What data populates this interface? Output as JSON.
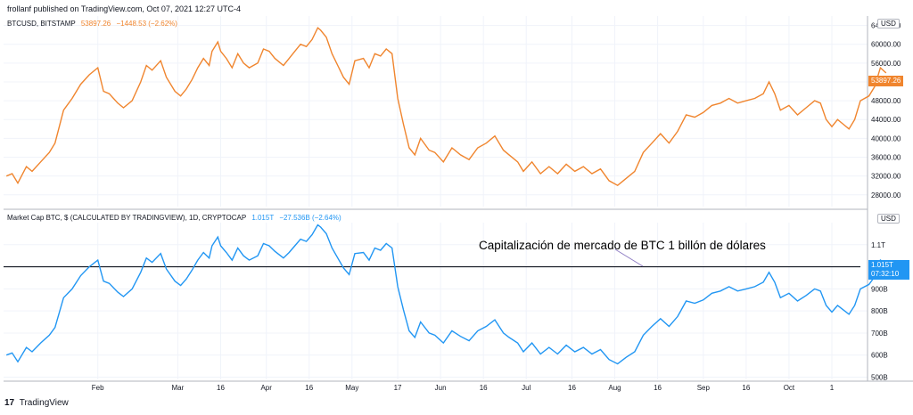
{
  "header": {
    "text": "frollanf published on TradingView.com, Oct 07, 2021 12:27 UTC-4"
  },
  "footer": {
    "logo": "17",
    "brand": "TradingView"
  },
  "colors": {
    "btc": "#f0852e",
    "cap": "#2196f3",
    "grid": "#f0f3fa",
    "axis": "#b2b5be",
    "hline": "#131722"
  },
  "annotation": {
    "text": "Capitalización de mercado de BTC 1 billón de dólares"
  },
  "chart_data": [
    {
      "type": "line",
      "symbol": "BTCUSD, BITSTAMP",
      "last_value": "53897.26",
      "change": "−1448.53 (−2.62%)",
      "unit": "USD",
      "price_label": "53897.26",
      "y_ticks": [
        "64000.00",
        "60000.00",
        "56000.00",
        "52000.00",
        "48000.00",
        "44000.00",
        "40000.00",
        "36000.00",
        "32000.00",
        "28000.00"
      ],
      "y_tick_values": [
        64000,
        60000,
        56000,
        52000,
        48000,
        44000,
        40000,
        36000,
        32000,
        28000
      ],
      "ylim": [
        25500,
        66000
      ],
      "x_ticks": [
        "Feb",
        "Mar",
        "16",
        "Apr",
        "16",
        "May",
        "17",
        "Jun",
        "16",
        "Jul",
        "16",
        "Aug",
        "16",
        "Sep",
        "16",
        "Oct",
        "1"
      ],
      "x_tick_days": [
        33,
        61,
        76,
        92,
        107,
        122,
        138,
        153,
        168,
        183,
        199,
        214,
        229,
        245,
        260,
        275,
        290
      ],
      "series": [
        {
          "values": [
            [
              1,
              32000
            ],
            [
              3,
              32500
            ],
            [
              5,
              30500
            ],
            [
              8,
              34000
            ],
            [
              10,
              33000
            ],
            [
              13,
              35000
            ],
            [
              16,
              37000
            ],
            [
              18,
              39000
            ],
            [
              21,
              46000
            ],
            [
              24,
              48500
            ],
            [
              27,
              51500
            ],
            [
              30,
              53500
            ],
            [
              33,
              55000
            ],
            [
              35,
              50000
            ],
            [
              37,
              49500
            ],
            [
              40,
              47500
            ],
            [
              42,
              46500
            ],
            [
              45,
              48000
            ],
            [
              48,
              52000
            ],
            [
              50,
              55500
            ],
            [
              52,
              54500
            ],
            [
              55,
              56500
            ],
            [
              57,
              53000
            ],
            [
              60,
              50000
            ],
            [
              62,
              49000
            ],
            [
              64,
              50500
            ],
            [
              66,
              52500
            ],
            [
              68,
              55000
            ],
            [
              70,
              57000
            ],
            [
              72,
              55500
            ],
            [
              73,
              58500
            ],
            [
              75,
              60500
            ],
            [
              76,
              58500
            ],
            [
              78,
              57000
            ],
            [
              80,
              55000
            ],
            [
              82,
              58000
            ],
            [
              84,
              56000
            ],
            [
              86,
              55000
            ],
            [
              89,
              56000
            ],
            [
              91,
              59000
            ],
            [
              93,
              58500
            ],
            [
              95,
              57000
            ],
            [
              98,
              55500
            ],
            [
              100,
              57000
            ],
            [
              102,
              58500
            ],
            [
              104,
              60000
            ],
            [
              106,
              59500
            ],
            [
              108,
              61000
            ],
            [
              110,
              63500
            ],
            [
              111,
              63000
            ],
            [
              113,
              61500
            ],
            [
              115,
              58000
            ],
            [
              117,
              55500
            ],
            [
              119,
              53000
            ],
            [
              121,
              51500
            ],
            [
              123,
              56500
            ],
            [
              126,
              57000
            ],
            [
              128,
              55000
            ],
            [
              130,
              58000
            ],
            [
              132,
              57500
            ],
            [
              134,
              59000
            ],
            [
              136,
              58000
            ],
            [
              138,
              48500
            ],
            [
              140,
              43000
            ],
            [
              142,
              38000
            ],
            [
              144,
              36500
            ],
            [
              146,
              40000
            ],
            [
              149,
              37500
            ],
            [
              151,
              37000
            ],
            [
              154,
              35000
            ],
            [
              157,
              38000
            ],
            [
              160,
              36500
            ],
            [
              163,
              35500
            ],
            [
              166,
              38000
            ],
            [
              169,
              39000
            ],
            [
              172,
              40500
            ],
            [
              175,
              37500
            ],
            [
              177,
              36500
            ],
            [
              180,
              35000
            ],
            [
              182,
              33000
            ],
            [
              185,
              35000
            ],
            [
              188,
              32500
            ],
            [
              191,
              34000
            ],
            [
              194,
              32500
            ],
            [
              197,
              34500
            ],
            [
              200,
              33000
            ],
            [
              203,
              34000
            ],
            [
              206,
              32500
            ],
            [
              209,
              33500
            ],
            [
              212,
              31000
            ],
            [
              215,
              30000
            ],
            [
              218,
              31500
            ],
            [
              221,
              33000
            ],
            [
              224,
              37000
            ],
            [
              227,
              39000
            ],
            [
              230,
              41000
            ],
            [
              233,
              39000
            ],
            [
              236,
              41500
            ],
            [
              239,
              45000
            ],
            [
              242,
              44500
            ],
            [
              245,
              45500
            ],
            [
              248,
              47000
            ],
            [
              251,
              47500
            ],
            [
              254,
              48500
            ],
            [
              257,
              47500
            ],
            [
              260,
              48000
            ],
            [
              263,
              48500
            ],
            [
              266,
              49500
            ],
            [
              268,
              52000
            ],
            [
              270,
              49500
            ],
            [
              272,
              46000
            ],
            [
              275,
              47000
            ],
            [
              278,
              45000
            ],
            [
              281,
              46500
            ],
            [
              284,
              48000
            ],
            [
              286,
              47500
            ],
            [
              288,
              44000
            ],
            [
              290,
              42500
            ],
            [
              292,
              44000
            ],
            [
              294,
              43000
            ],
            [
              296,
              42000
            ],
            [
              298,
              44000
            ],
            [
              300,
              48000
            ],
            [
              303,
              49000
            ],
            [
              305,
              51000
            ],
            [
              307,
              55000
            ],
            [
              309,
              53900
            ]
          ]
        }
      ]
    },
    {
      "type": "line",
      "symbol": "Market Cap BTC, $ (CALCULATED BY TRADINGVIEW), 1D, CRYPTOCAP",
      "last_value": "1.015T",
      "change": "−27.536B (−2.64%)",
      "unit": "USD",
      "price_label": "1.015T",
      "countdown": "07:32:10",
      "y_ticks": [
        "1.1T",
        "900B",
        "800B",
        "700B",
        "600B",
        "500B"
      ],
      "y_tick_values": [
        1100,
        900,
        800,
        700,
        600,
        500
      ],
      "ylim": [
        490,
        1200
      ],
      "hline": 1000,
      "x_ticks": [
        "Feb",
        "Mar",
        "16",
        "Apr",
        "16",
        "May",
        "17",
        "Jun",
        "16",
        "Jul",
        "16",
        "Aug",
        "16",
        "Sep",
        "16",
        "Oct",
        "1"
      ],
      "x_tick_days": [
        33,
        61,
        76,
        92,
        107,
        122,
        138,
        153,
        168,
        183,
        199,
        214,
        229,
        245,
        260,
        275,
        290
      ],
      "series": [
        {
          "values": [
            [
              1,
              600
            ],
            [
              3,
              610
            ],
            [
              5,
              570
            ],
            [
              8,
              635
            ],
            [
              10,
              615
            ],
            [
              13,
              655
            ],
            [
              16,
              690
            ],
            [
              18,
              725
            ],
            [
              21,
              860
            ],
            [
              24,
              900
            ],
            [
              27,
              960
            ],
            [
              30,
              1000
            ],
            [
              33,
              1030
            ],
            [
              35,
              935
            ],
            [
              37,
              925
            ],
            [
              40,
              885
            ],
            [
              42,
              865
            ],
            [
              45,
              900
            ],
            [
              48,
              975
            ],
            [
              50,
              1040
            ],
            [
              52,
              1020
            ],
            [
              55,
              1060
            ],
            [
              57,
              990
            ],
            [
              60,
              935
            ],
            [
              62,
              915
            ],
            [
              64,
              945
            ],
            [
              66,
              985
            ],
            [
              68,
              1030
            ],
            [
              70,
              1065
            ],
            [
              72,
              1040
            ],
            [
              73,
              1095
            ],
            [
              75,
              1135
            ],
            [
              76,
              1095
            ],
            [
              78,
              1065
            ],
            [
              80,
              1030
            ],
            [
              82,
              1085
            ],
            [
              84,
              1050
            ],
            [
              86,
              1030
            ],
            [
              89,
              1050
            ],
            [
              91,
              1105
            ],
            [
              93,
              1095
            ],
            [
              95,
              1070
            ],
            [
              98,
              1040
            ],
            [
              100,
              1065
            ],
            [
              102,
              1095
            ],
            [
              104,
              1125
            ],
            [
              106,
              1115
            ],
            [
              108,
              1145
            ],
            [
              110,
              1190
            ],
            [
              111,
              1180
            ],
            [
              113,
              1150
            ],
            [
              115,
              1085
            ],
            [
              117,
              1040
            ],
            [
              119,
              995
            ],
            [
              121,
              965
            ],
            [
              123,
              1060
            ],
            [
              126,
              1065
            ],
            [
              128,
              1030
            ],
            [
              130,
              1085
            ],
            [
              132,
              1075
            ],
            [
              134,
              1105
            ],
            [
              136,
              1085
            ],
            [
              138,
              910
            ],
            [
              140,
              805
            ],
            [
              142,
              710
            ],
            [
              144,
              680
            ],
            [
              146,
              750
            ],
            [
              149,
              700
            ],
            [
              151,
              690
            ],
            [
              154,
              655
            ],
            [
              157,
              710
            ],
            [
              160,
              685
            ],
            [
              163,
              665
            ],
            [
              166,
              710
            ],
            [
              169,
              730
            ],
            [
              172,
              760
            ],
            [
              175,
              700
            ],
            [
              177,
              680
            ],
            [
              180,
              655
            ],
            [
              182,
              615
            ],
            [
              185,
              655
            ],
            [
              188,
              605
            ],
            [
              191,
              635
            ],
            [
              194,
              605
            ],
            [
              197,
              645
            ],
            [
              200,
              615
            ],
            [
              203,
              635
            ],
            [
              206,
              605
            ],
            [
              209,
              625
            ],
            [
              212,
              580
            ],
            [
              215,
              560
            ],
            [
              218,
              590
            ],
            [
              221,
              615
            ],
            [
              224,
              690
            ],
            [
              227,
              730
            ],
            [
              230,
              765
            ],
            [
              233,
              730
            ],
            [
              236,
              775
            ],
            [
              239,
              845
            ],
            [
              242,
              835
            ],
            [
              245,
              850
            ],
            [
              248,
              880
            ],
            [
              251,
              890
            ],
            [
              254,
              910
            ],
            [
              257,
              890
            ],
            [
              260,
              900
            ],
            [
              263,
              910
            ],
            [
              266,
              930
            ],
            [
              268,
              975
            ],
            [
              270,
              930
            ],
            [
              272,
              860
            ],
            [
              275,
              880
            ],
            [
              278,
              845
            ],
            [
              281,
              870
            ],
            [
              284,
              900
            ],
            [
              286,
              890
            ],
            [
              288,
              825
            ],
            [
              290,
              795
            ],
            [
              292,
              825
            ],
            [
              294,
              805
            ],
            [
              296,
              785
            ],
            [
              298,
              825
            ],
            [
              300,
              900
            ],
            [
              303,
              920
            ],
            [
              305,
              955
            ],
            [
              307,
              1030
            ],
            [
              309,
              1015
            ]
          ]
        }
      ]
    }
  ]
}
